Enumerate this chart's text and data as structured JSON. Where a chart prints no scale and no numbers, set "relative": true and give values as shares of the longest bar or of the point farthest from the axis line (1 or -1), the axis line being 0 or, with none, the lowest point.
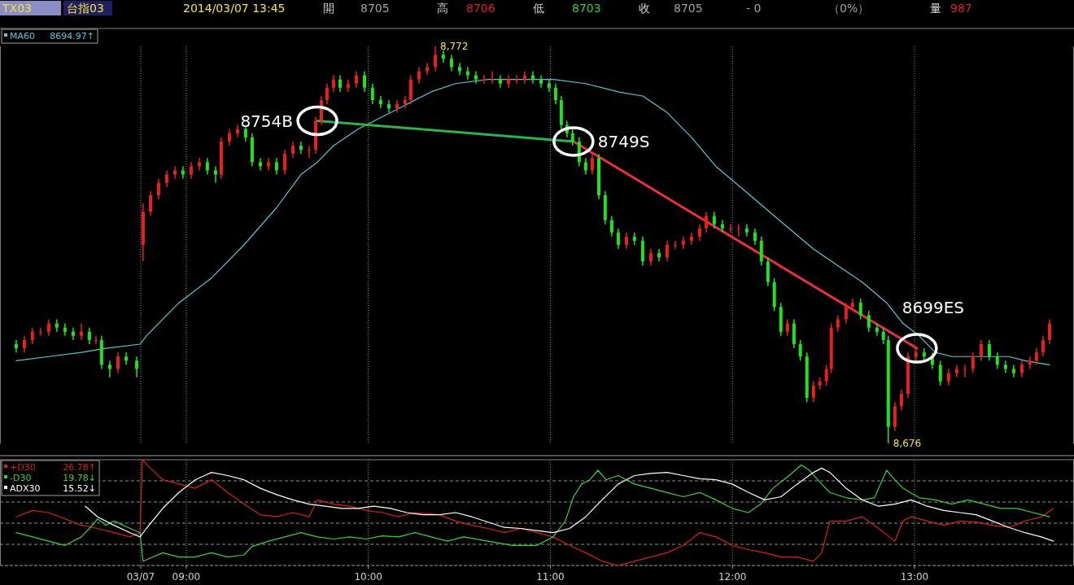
{
  "chart_data": [
    {
      "type": "candlestick",
      "title": "TX03",
      "subtitle": "台指03",
      "x": [
        8.066,
        8.111,
        8.155,
        8.2,
        8.245,
        8.289,
        8.334,
        8.379,
        8.424,
        8.468,
        8.504,
        8.535,
        8.58,
        8.625,
        8.67,
        8.728,
        8.763,
        8.804,
        8.848,
        8.893,
        8.938,
        8.982,
        9.027,
        9.072,
        9.116,
        9.161,
        9.192,
        9.237,
        9.282,
        9.326,
        9.362,
        9.407,
        9.452,
        9.496,
        9.541,
        9.586,
        9.63,
        9.675,
        9.711,
        9.742,
        9.773,
        9.809,
        9.845,
        9.889,
        9.934,
        9.979,
        10.023,
        10.068,
        10.113,
        10.158,
        10.202,
        10.233,
        10.278,
        10.323,
        10.368,
        10.412,
        10.457,
        10.502,
        10.546,
        10.591,
        10.636,
        10.681,
        10.725,
        10.77,
        10.815,
        10.859,
        10.904,
        10.949,
        10.993,
        11.029,
        11.06,
        11.091,
        11.122,
        11.158,
        11.194,
        11.23,
        11.266,
        11.301,
        11.337,
        11.373,
        11.418,
        11.462,
        11.507,
        11.552,
        11.597,
        11.641,
        11.686,
        11.73,
        11.775,
        11.82,
        11.856,
        11.9,
        11.945,
        11.99,
        12.034,
        12.079,
        12.124,
        12.159,
        12.195,
        12.23,
        12.266,
        12.302,
        12.338,
        12.373,
        12.409,
        12.445,
        12.48,
        12.516,
        12.543,
        12.579,
        12.624,
        12.66,
        12.704,
        12.749,
        12.794,
        12.829,
        12.856,
        12.892,
        12.928,
        12.964,
        13.008,
        13.053,
        13.098,
        13.142,
        13.187,
        13.232,
        13.277,
        13.321,
        13.366,
        13.411,
        13.455,
        13.5,
        13.545,
        13.59,
        13.634,
        13.67,
        13.706,
        13.742
      ],
      "ohlc": [
        [
          8700,
          8701,
          8698,
          8699
        ],
        [
          8699,
          8702,
          8698,
          8701
        ],
        [
          8701,
          8704,
          8700,
          8703
        ],
        [
          8703,
          8704,
          8702,
          8703
        ],
        [
          8703,
          8706,
          8702,
          8705
        ],
        [
          8705,
          8706,
          8703,
          8704
        ],
        [
          8704,
          8705,
          8702,
          8703
        ],
        [
          8703,
          8704,
          8701,
          8702
        ],
        [
          8702,
          8705,
          8701,
          8703
        ],
        [
          8703,
          8704,
          8700,
          8701
        ],
        [
          8701,
          8702,
          8700,
          8701
        ],
        [
          8701,
          8702,
          8694,
          8695
        ],
        [
          8695,
          8696,
          8692,
          8694
        ],
        [
          8694,
          8698,
          8693,
          8697
        ],
        [
          8697,
          8698,
          8695,
          8696
        ],
        [
          8696,
          8697,
          8692,
          8694
        ],
        [
          8724,
          8734,
          8720,
          8732
        ],
        [
          8732,
          8737,
          8731,
          8736
        ],
        [
          8736,
          8740,
          8735,
          8739
        ],
        [
          8739,
          8742,
          8738,
          8741
        ],
        [
          8741,
          8743,
          8740,
          8742
        ],
        [
          8742,
          8743,
          8740,
          8741
        ],
        [
          8741,
          8744,
          8740,
          8743
        ],
        [
          8743,
          8745,
          8742,
          8744
        ],
        [
          8744,
          8745,
          8741,
          8742
        ],
        [
          8742,
          8743,
          8739,
          8741
        ],
        [
          8741,
          8750,
          8740,
          8749
        ],
        [
          8749,
          8752,
          8748,
          8751
        ],
        [
          8751,
          8753,
          8750,
          8752
        ],
        [
          8752,
          8753,
          8749,
          8750
        ],
        [
          8750,
          8751,
          8743,
          8744
        ],
        [
          8744,
          8745,
          8742,
          8743
        ],
        [
          8743,
          8745,
          8742,
          8744
        ],
        [
          8744,
          8745,
          8741,
          8742
        ],
        [
          8742,
          8747,
          8741,
          8746
        ],
        [
          8746,
          8749,
          8745,
          8748
        ],
        [
          8748,
          8749,
          8746,
          8747
        ],
        [
          8747,
          8748,
          8745,
          8747
        ],
        [
          8747,
          8755,
          8746,
          8754
        ],
        [
          8754,
          8760,
          8753,
          8759
        ],
        [
          8759,
          8763,
          8758,
          8762
        ],
        [
          8762,
          8765,
          8761,
          8764
        ],
        [
          8764,
          8765,
          8761,
          8762
        ],
        [
          8762,
          8764,
          8761,
          8763
        ],
        [
          8763,
          8766,
          8762,
          8765
        ],
        [
          8765,
          8766,
          8761,
          8762
        ],
        [
          8762,
          8763,
          8758,
          8759
        ],
        [
          8759,
          8760,
          8757,
          8758
        ],
        [
          8758,
          8759,
          8756,
          8757
        ],
        [
          8757,
          8759,
          8756,
          8758
        ],
        [
          8758,
          8760,
          8757,
          8759
        ],
        [
          8759,
          8765,
          8758,
          8764
        ],
        [
          8764,
          8767,
          8763,
          8766
        ],
        [
          8766,
          8768,
          8765,
          8767
        ],
        [
          8767,
          8772,
          8766,
          8770
        ],
        [
          8770,
          8771,
          8768,
          8769
        ],
        [
          8769,
          8770,
          8766,
          8767
        ],
        [
          8767,
          8768,
          8765,
          8766
        ],
        [
          8766,
          8767,
          8764,
          8765
        ],
        [
          8765,
          8766,
          8763,
          8764
        ],
        [
          8764,
          8765,
          8763,
          8764
        ],
        [
          8764,
          8766,
          8763,
          8764
        ],
        [
          8764,
          8765,
          8762,
          8763
        ],
        [
          8763,
          8765,
          8762,
          8764
        ],
        [
          8764,
          8765,
          8763,
          8764
        ],
        [
          8764,
          8766,
          8763,
          8765
        ],
        [
          8765,
          8766,
          8763,
          8764
        ],
        [
          8764,
          8765,
          8762,
          8763
        ],
        [
          8763,
          8764,
          8761,
          8762
        ],
        [
          8762,
          8763,
          8758,
          8759
        ],
        [
          8759,
          8760,
          8752,
          8753
        ],
        [
          8753,
          8754,
          8750,
          8751
        ],
        [
          8751,
          8752,
          8748,
          8749
        ],
        [
          8749,
          8750,
          8743,
          8744
        ],
        [
          8744,
          8745,
          8741,
          8742
        ],
        [
          8742,
          8746,
          8741,
          8745
        ],
        [
          8745,
          8746,
          8735,
          8736
        ],
        [
          8736,
          8737,
          8729,
          8730
        ],
        [
          8730,
          8731,
          8726,
          8727
        ],
        [
          8727,
          8728,
          8723,
          8724
        ],
        [
          8724,
          8727,
          8723,
          8726
        ],
        [
          8726,
          8727,
          8724,
          8725
        ],
        [
          8725,
          8726,
          8719,
          8720
        ],
        [
          8720,
          8723,
          8719,
          8722
        ],
        [
          8722,
          8723,
          8720,
          8721
        ],
        [
          8721,
          8725,
          8720,
          8724
        ],
        [
          8724,
          8725,
          8723,
          8724
        ],
        [
          8724,
          8726,
          8723,
          8725
        ],
        [
          8725,
          8727,
          8724,
          8726
        ],
        [
          8726,
          8729,
          8725,
          8728
        ],
        [
          8728,
          8732,
          8727,
          8731
        ],
        [
          8731,
          8732,
          8728,
          8729
        ],
        [
          8729,
          8730,
          8727,
          8728
        ],
        [
          8728,
          8729,
          8727,
          8728
        ],
        [
          8728,
          8729,
          8726,
          8728
        ],
        [
          8728,
          8729,
          8726,
          8727
        ],
        [
          8727,
          8728,
          8724,
          8725
        ],
        [
          8725,
          8726,
          8719,
          8720
        ],
        [
          8720,
          8721,
          8714,
          8715
        ],
        [
          8715,
          8716,
          8708,
          8709
        ],
        [
          8709,
          8710,
          8702,
          8703
        ],
        [
          8703,
          8706,
          8702,
          8705
        ],
        [
          8705,
          8706,
          8699,
          8700
        ],
        [
          8700,
          8701,
          8696,
          8697
        ],
        [
          8697,
          8698,
          8686,
          8687
        ],
        [
          8687,
          8691,
          8686,
          8690
        ],
        [
          8690,
          8692,
          8689,
          8691
        ],
        [
          8691,
          8695,
          8690,
          8694
        ],
        [
          8694,
          8705,
          8693,
          8704
        ],
        [
          8704,
          8707,
          8703,
          8706
        ],
        [
          8706,
          8710,
          8705,
          8709
        ],
        [
          8709,
          8711,
          8708,
          8710
        ],
        [
          8710,
          8711,
          8706,
          8707
        ],
        [
          8707,
          8708,
          8703,
          8704
        ],
        [
          8704,
          8705,
          8702,
          8703
        ],
        [
          8703,
          8704,
          8700,
          8701
        ],
        [
          8701,
          8702,
          8676,
          8680
        ],
        [
          8680,
          8686,
          8679,
          8685
        ],
        [
          8685,
          8689,
          8684,
          8688
        ],
        [
          8688,
          8698,
          8687,
          8697
        ],
        [
          8697,
          8699,
          8696,
          8698
        ],
        [
          8698,
          8699,
          8696,
          8697
        ],
        [
          8697,
          8698,
          8694,
          8695
        ],
        [
          8695,
          8696,
          8690,
          8691
        ],
        [
          8691,
          8694,
          8690,
          8693
        ],
        [
          8693,
          8695,
          8692,
          8694
        ],
        [
          8694,
          8695,
          8692,
          8694
        ],
        [
          8694,
          8698,
          8693,
          8697
        ],
        [
          8697,
          8701,
          8696,
          8700
        ],
        [
          8700,
          8701,
          8696,
          8697
        ],
        [
          8697,
          8698,
          8694,
          8695
        ],
        [
          8695,
          8696,
          8693,
          8694
        ],
        [
          8694,
          8695,
          8692,
          8693
        ],
        [
          8693,
          8696,
          8692,
          8695
        ],
        [
          8695,
          8697,
          8694,
          8696
        ],
        [
          8696,
          8699,
          8695,
          8698
        ],
        [
          8698,
          8702,
          8697,
          8701
        ],
        [
          8701,
          8706,
          8700,
          8705
        ]
      ],
      "xlim": [
        7.977,
        13.876
      ],
      "xticks": [
        {
          "value": 8.75,
          "label": null
        },
        {
          "value": 9,
          "label": null
        },
        {
          "value": 10,
          "label": null
        },
        {
          "value": 11,
          "label": null
        },
        {
          "value": 12,
          "label": null
        },
        {
          "value": 13,
          "label": null
        }
      ],
      "grid": "x",
      "tick_labels": false,
      "legend": "top left",
      "series": [
        {
          "type": "line",
          "name": "MA60",
          "color": "#58c8d0",
          "x": [
            8.066,
            8.245,
            8.424,
            8.558,
            8.746,
            8.781,
            8.96,
            9.139,
            9.317,
            9.496,
            9.63,
            9.72,
            9.809,
            9.943,
            10.077,
            10.211,
            10.345,
            10.479,
            10.658,
            10.837,
            11.015,
            11.194,
            11.373,
            11.507,
            11.641,
            11.775,
            11.909,
            12.043,
            12.177,
            12.311,
            12.445,
            12.579,
            12.713,
            12.847,
            12.937,
            13.026,
            13.115,
            13.205,
            13.339,
            13.428,
            13.518,
            13.607,
            13.742
          ],
          "values": [
            8696,
            8697,
            8698,
            8699,
            8700,
            8702,
            8710,
            8716,
            8724,
            8733,
            8741,
            8744,
            8748,
            8752,
            8755,
            8758,
            8761,
            8763,
            8764,
            8764,
            8764,
            8763,
            8761,
            8760,
            8756,
            8750,
            8743,
            8738,
            8733,
            8728,
            8723,
            8719,
            8715,
            8710,
            8705,
            8702,
            8698,
            8697,
            8697,
            8697,
            8697,
            8696,
            8695
          ]
        },
        {
          "type": "line",
          "color": "#2eb24e",
          "x": [
            9.72,
            11.127
          ],
          "values": [
            8754,
            8749
          ]
        },
        {
          "type": "line",
          "color": "#e8303a",
          "x": [
            11.127,
            13.013
          ],
          "values": [
            8749,
            8699
          ]
        }
      ],
      "annotations": [
        "2014/03/07 13:45",
        "開",
        "8705",
        "高",
        "8706",
        "低",
        "8703",
        "收",
        "8705",
        "- 0",
        "（0%）",
        "量",
        "987",
        "8694.97↑",
        {
          "text": "8754B",
          "x": 9.72,
          "y": 8754
        },
        {
          "text": "8749S",
          "x": 11.127,
          "y": 8749
        },
        {
          "text": "8699ES",
          "x": 13.013,
          "y": 8699
        },
        {
          "text": "8,772",
          "x": 10.368,
          "y": 8772
        },
        {
          "text": "8,676",
          "x": 12.856,
          "y": 8676
        }
      ]
    },
    {
      "type": "line",
      "relative": true,
      "xlim": [
        7.977,
        13.876
      ],
      "xticks": [
        {
          "value": 8.75,
          "label": "03/07"
        },
        {
          "value": 9,
          "label": "09:00"
        },
        {
          "value": 10,
          "label": "10:00"
        },
        {
          "value": 11,
          "label": "11:00"
        },
        {
          "value": 12,
          "label": "12:00"
        },
        {
          "value": 13,
          "label": "13:00"
        }
      ],
      "grid": true,
      "tick_labels": "x",
      "legend": "top left",
      "series": [
        {
          "name": "+D30",
          "color": "#d42020",
          "x": [
            8.066,
            8.156,
            8.245,
            8.334,
            8.424,
            8.513,
            8.603,
            8.692,
            8.746,
            8.759,
            8.804,
            8.871,
            8.96,
            9.049,
            9.139,
            9.228,
            9.317,
            9.407,
            9.496,
            9.586,
            9.675,
            9.72,
            9.809,
            9.898,
            9.988,
            10.077,
            10.166,
            10.256,
            10.39,
            10.479,
            10.569,
            10.658,
            10.747,
            10.837,
            10.926,
            11.015,
            11.105,
            11.194,
            11.284,
            11.373,
            11.462,
            11.552,
            11.641,
            11.73,
            11.82,
            11.909,
            11.998,
            12.088,
            12.177,
            12.267,
            12.356,
            12.445,
            12.49,
            12.535,
            12.624,
            12.713,
            12.803,
            12.892,
            12.937,
            12.981,
            13.071,
            13.16,
            13.25,
            13.339,
            13.428,
            13.518,
            13.607,
            13.697,
            13.763
          ],
          "values": [
            0.46,
            0.52,
            0.5,
            0.44,
            0.38,
            0.35,
            0.31,
            0.27,
            0.31,
            1.0,
            0.92,
            0.81,
            0.77,
            0.73,
            0.81,
            0.69,
            0.58,
            0.48,
            0.46,
            0.5,
            0.46,
            0.62,
            0.58,
            0.56,
            0.52,
            0.5,
            0.46,
            0.5,
            0.48,
            0.42,
            0.38,
            0.35,
            0.31,
            0.35,
            0.31,
            0.27,
            0.19,
            0.12,
            0.04,
            0,
            0.04,
            0.08,
            0.12,
            0.19,
            0.31,
            0.27,
            0.19,
            0.15,
            0.12,
            0.08,
            0.08,
            0.04,
            0.12,
            0.42,
            0.42,
            0.46,
            0.35,
            0.23,
            0.42,
            0.46,
            0.42,
            0.38,
            0.42,
            0.41,
            0.38,
            0.36,
            0.42,
            0.46,
            0.54
          ]
        },
        {
          "name": "-D30",
          "color": "#3ccf3c",
          "x": [
            8.066,
            8.156,
            8.245,
            8.334,
            8.424,
            8.468,
            8.513,
            8.558,
            8.603,
            8.692,
            8.746,
            8.763,
            8.871,
            8.96,
            9.049,
            9.139,
            9.228,
            9.317,
            9.362,
            9.452,
            9.541,
            9.63,
            9.72,
            9.809,
            9.898,
            9.988,
            10.077,
            10.166,
            10.256,
            10.345,
            10.435,
            10.524,
            10.658,
            10.792,
            10.926,
            11.015,
            11.082,
            11.127,
            11.172,
            11.217,
            11.261,
            11.306,
            11.373,
            11.462,
            11.552,
            11.641,
            11.73,
            11.82,
            11.909,
            11.998,
            12.088,
            12.155,
            12.222,
            12.311,
            12.378,
            12.423,
            12.468,
            12.535,
            12.624,
            12.713,
            12.78,
            12.847,
            12.892,
            12.937,
            13.026,
            13.115,
            13.205,
            13.294,
            13.383,
            13.473,
            13.562,
            13.652,
            13.742
          ],
          "values": [
            0.31,
            0.27,
            0.23,
            0.19,
            0.27,
            0.35,
            0.44,
            0.38,
            0.42,
            0.35,
            0.31,
            0.04,
            0.12,
            0.08,
            0.08,
            0.12,
            0.08,
            0.1,
            0.18,
            0.23,
            0.27,
            0.31,
            0.27,
            0.25,
            0.27,
            0.25,
            0.28,
            0.27,
            0.31,
            0.27,
            0.23,
            0.27,
            0.23,
            0.19,
            0.19,
            0.27,
            0.42,
            0.65,
            0.77,
            0.81,
            0.9,
            0.81,
            0.85,
            0.77,
            0.73,
            0.69,
            0.65,
            0.69,
            0.62,
            0.54,
            0.5,
            0.58,
            0.73,
            0.85,
            0.95,
            0.9,
            0.81,
            0.69,
            0.64,
            0.62,
            0.64,
            0.9,
            0.81,
            0.73,
            0.64,
            0.62,
            0.58,
            0.62,
            0.58,
            0.54,
            0.54,
            0.5,
            0.46
          ]
        },
        {
          "name": "ADX30",
          "color": "#ffffff",
          "x": [
            8.446,
            8.513,
            8.603,
            8.692,
            8.746,
            8.781,
            8.871,
            8.96,
            9.049,
            9.139,
            9.228,
            9.317,
            9.407,
            9.496,
            9.586,
            9.675,
            9.764,
            9.854,
            9.943,
            10.032,
            10.122,
            10.211,
            10.301,
            10.39,
            10.479,
            10.569,
            10.658,
            10.747,
            10.837,
            10.926,
            11.015,
            11.105,
            11.194,
            11.284,
            11.373,
            11.462,
            11.552,
            11.641,
            11.73,
            11.82,
            11.909,
            11.998,
            12.088,
            12.177,
            12.267,
            12.356,
            12.445,
            12.49,
            12.535,
            12.624,
            12.713,
            12.803,
            12.892,
            12.981,
            13.071,
            13.16,
            13.25,
            13.339,
            13.428,
            13.518,
            13.607,
            13.697,
            13.763
          ],
          "values": [
            0.56,
            0.46,
            0.38,
            0.31,
            0.27,
            0.35,
            0.54,
            0.69,
            0.81,
            0.88,
            0.85,
            0.81,
            0.73,
            0.67,
            0.62,
            0.58,
            0.56,
            0.54,
            0.54,
            0.56,
            0.54,
            0.5,
            0.48,
            0.48,
            0.5,
            0.46,
            0.41,
            0.36,
            0.35,
            0.33,
            0.31,
            0.35,
            0.46,
            0.62,
            0.77,
            0.85,
            0.87,
            0.88,
            0.85,
            0.82,
            0.81,
            0.77,
            0.69,
            0.62,
            0.65,
            0.77,
            0.88,
            0.92,
            0.88,
            0.73,
            0.62,
            0.56,
            0.58,
            0.62,
            0.56,
            0.52,
            0.5,
            0.48,
            0.42,
            0.36,
            0.31,
            0.27,
            0.23
          ]
        }
      ],
      "annotations": [
        "26.78↑",
        "19.78↓",
        "15.52↓"
      ]
    }
  ]
}
